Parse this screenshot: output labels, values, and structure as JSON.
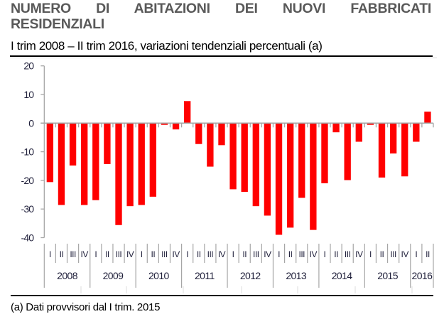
{
  "header": {
    "title_line1": "NUMERO DI ABITAZIONI DEI NUOVI FABBRICATI",
    "title_line2": "RESIDENZIALI",
    "subtitle": "I trim 2008 – II trim 2016, variazioni tendenziali percentuali (a)"
  },
  "footnote": "(a) Dati provvisori dal I trim. 2015",
  "colors": {
    "bar": "#ff0000",
    "axis": "#a6a6a6",
    "text": "#1f1f3a"
  },
  "chart_data": {
    "type": "bar",
    "title": "NUMERO DI ABITAZIONI DEI NUOVI FABBRICATI RESIDENZIALI",
    "subtitle": "I trim 2008 – II trim 2016, variazioni tendenziali percentuali (a)",
    "xlabel": "",
    "ylabel": "",
    "ylim": [
      -40,
      20
    ],
    "yticks": [
      20,
      10,
      0,
      -10,
      -20,
      -30,
      -40
    ],
    "grid": false,
    "legend": null,
    "years": [
      "2008",
      "2009",
      "2010",
      "2011",
      "2012",
      "2013",
      "2014",
      "2015",
      "2016"
    ],
    "quarter_labels": [
      "I",
      "II",
      "III",
      "IV"
    ],
    "categories": [
      "2008 I",
      "2008 II",
      "2008 III",
      "2008 IV",
      "2009 I",
      "2009 II",
      "2009 III",
      "2009 IV",
      "2010 I",
      "2010 II",
      "2010 III",
      "2010 IV",
      "2011 I",
      "2011 II",
      "2011 III",
      "2011 IV",
      "2012 I",
      "2012 II",
      "2012 III",
      "2012 IV",
      "2013 I",
      "2013 II",
      "2013 III",
      "2013 IV",
      "2014 I",
      "2014 II",
      "2014 III",
      "2014 IV",
      "2015 I",
      "2015 II",
      "2015 III",
      "2015 IV",
      "2016 I",
      "2016 II"
    ],
    "series": [
      {
        "name": "Variazione tendenziale %",
        "values": [
          -20.6,
          -28.6,
          -14.8,
          -28.6,
          -26.9,
          -14.3,
          -35.6,
          -29.0,
          -28.6,
          -25.7,
          -0.6,
          -2.2,
          7.7,
          -7.3,
          -15.2,
          -7.7,
          -23.1,
          -24.0,
          -29.0,
          -32.3,
          -39.0,
          -36.5,
          -26.1,
          -37.3,
          -21.0,
          -3.2,
          -19.9,
          -6.5,
          -0.6,
          -19.0,
          -10.6,
          -18.6,
          -6.5,
          4.0
        ]
      }
    ],
    "footnote": "(a) Dati provvisori dal I trim. 2015"
  }
}
